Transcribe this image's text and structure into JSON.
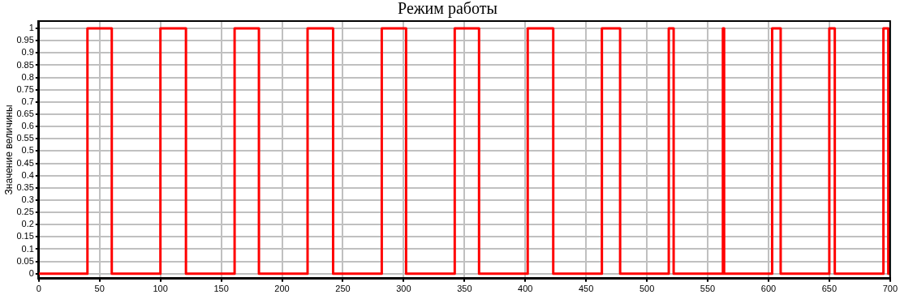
{
  "chart_data": {
    "type": "step",
    "title": "Режим работы",
    "ylabel": "Значение величины",
    "series": [
      {
        "color": "#ff0000",
        "x": [
          0,
          40,
          60,
          100,
          121,
          161,
          181,
          221,
          242,
          282,
          302,
          342,
          362,
          402,
          423,
          463,
          478,
          518,
          522,
          562.5,
          563.5,
          603,
          610,
          650,
          654.5,
          694.5,
          698.5,
          700
        ],
        "values": [
          0,
          1,
          0,
          1,
          0,
          1,
          0,
          1,
          0,
          1,
          0,
          1,
          0,
          1,
          0,
          1,
          0,
          1,
          0,
          1,
          0,
          1,
          0,
          1,
          0,
          1,
          0,
          0
        ]
      }
    ],
    "xlim": [
      0,
      700
    ],
    "xticks": [
      0,
      50,
      100,
      150,
      200,
      250,
      300,
      350,
      400,
      450,
      500,
      550,
      600,
      650,
      700
    ],
    "ylim": [
      -0.02,
      1.03
    ],
    "yticks": [
      0,
      0.05,
      0.1,
      0.15,
      0.2,
      0.25,
      0.3,
      0.35,
      0.4,
      0.45,
      0.5,
      0.55,
      0.6,
      0.65,
      0.7,
      0.75,
      0.8,
      0.85,
      0.9,
      0.95,
      1
    ],
    "grid": true,
    "legend": false,
    "marker": "none",
    "line_style": "solid"
  }
}
